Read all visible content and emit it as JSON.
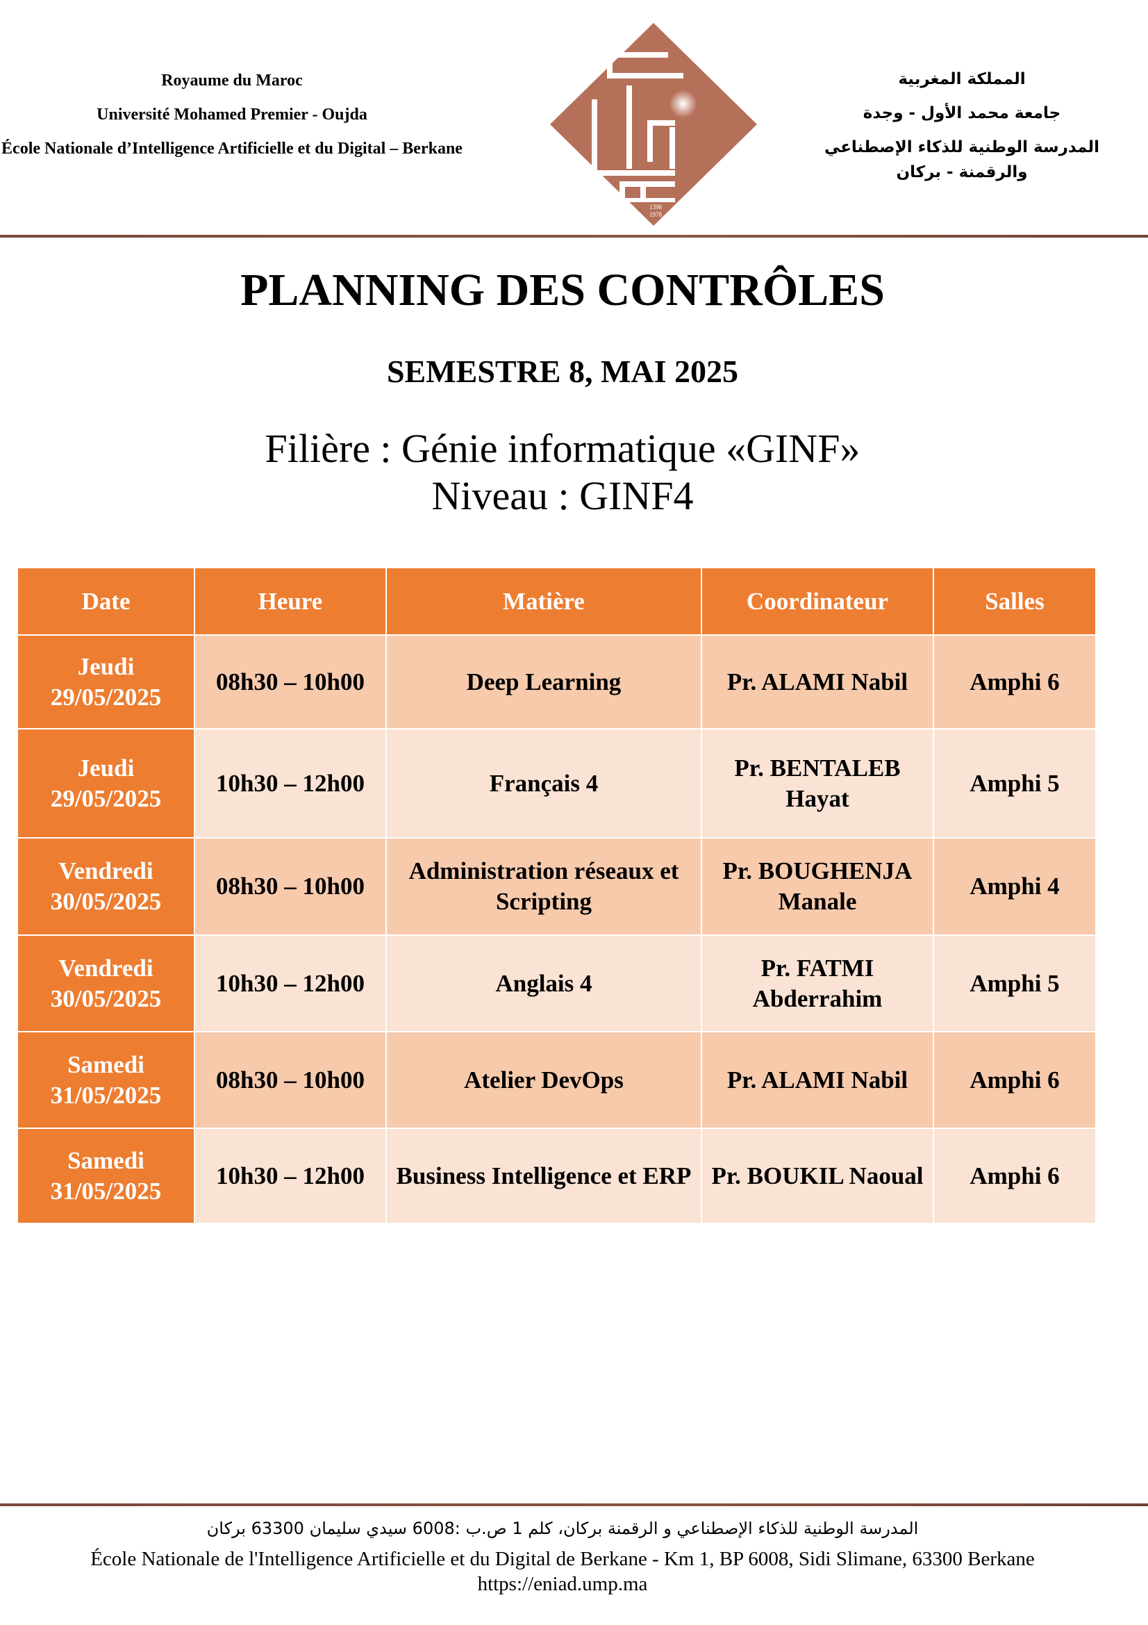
{
  "header": {
    "left_lines": [
      "Royaume du Maroc",
      "Université Mohamed Premier - Oujda",
      "École Nationale d’Intelligence Artificielle et du Digital – Berkane"
    ],
    "right_lines": [
      "المملكة المغربية",
      "جامعة محمد الأول - وجدة",
      "المدرسة الوطنية للذكاء الإصطناعي والرقمنة - بركان"
    ],
    "logo": {
      "years": [
        "1398",
        "1978"
      ],
      "color": "#B5705A"
    }
  },
  "title": "PLANNING DES CONTRÔLES",
  "subtitle": "SEMESTRE 8, MAI 2025",
  "filiere": "Filière : Génie informatique «GINF»",
  "niveau": "Niveau : GINF4",
  "table": {
    "columns": [
      "Date",
      "Heure",
      "Matière",
      "Coordinateur",
      "Salles"
    ],
    "rows": [
      {
        "day": "Jeudi",
        "date": "29/05/2025",
        "heure": "08h30 – 10h00",
        "matiere": "Deep Learning",
        "coordinateur": "Pr. ALAMI Nabil",
        "salle": "Amphi 6"
      },
      {
        "day": "Jeudi",
        "date": "29/05/2025",
        "heure": "10h30 – 12h00",
        "matiere": "Français 4",
        "coordinateur": "Pr. BENTALEB Hayat",
        "salle": "Amphi 5"
      },
      {
        "day": "Vendredi",
        "date": "30/05/2025",
        "heure": "08h30 – 10h00",
        "matiere": "Administration réseaux et Scripting",
        "coordinateur": "Pr. BOUGHENJA Manale",
        "salle": "Amphi 4"
      },
      {
        "day": "Vendredi",
        "date": "30/05/2025",
        "heure": "10h30 – 12h00",
        "matiere": "Anglais 4",
        "coordinateur": "Pr. FATMI Abderrahim",
        "salle": "Amphi 5"
      },
      {
        "day": "Samedi",
        "date": "31/05/2025",
        "heure": "08h30 – 10h00",
        "matiere": "Atelier DevOps",
        "coordinateur": "Pr. ALAMI Nabil",
        "salle": "Amphi 6"
      },
      {
        "day": "Samedi",
        "date": "31/05/2025",
        "heure": "10h30 – 12h00",
        "matiere": "Business Intelligence et ERP",
        "coordinateur": "Pr. BOUKIL Naoual",
        "salle": "Amphi 6"
      }
    ],
    "colors": {
      "header": "#ED7D31",
      "row_dark": "#F7CAAC",
      "row_light": "#FAE3D4"
    }
  },
  "footer": {
    "arabic": "المدرسة الوطنية للذكاء الإصطناعي و الرقمنة بركان، كلم 1 ص.ب :6008 سيدي سليمان 63300  بركان",
    "french": "École Nationale de l'Intelligence Artificielle et du Digital de Berkane - Km 1, BP 6008, Sidi Slimane, 63300 Berkane",
    "url": "https://eniad.ump.ma"
  }
}
